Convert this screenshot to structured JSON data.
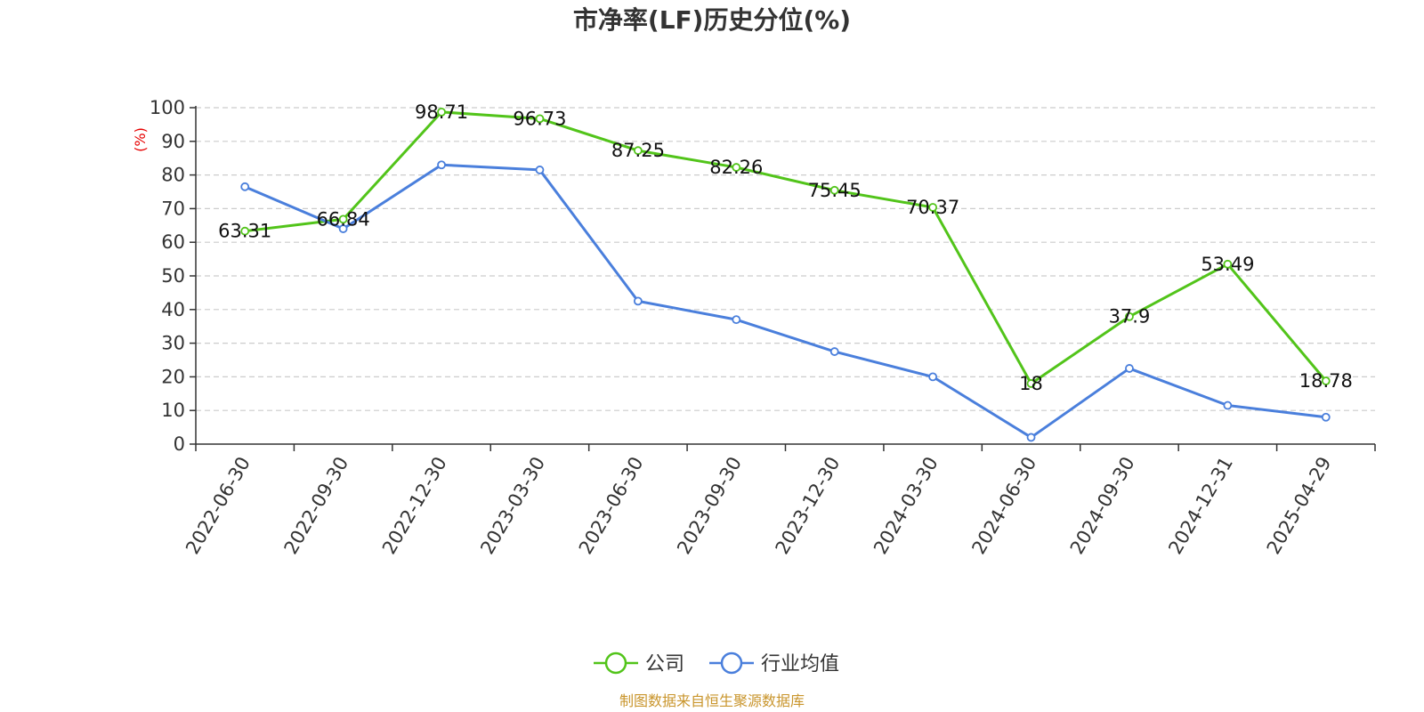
{
  "chart_data": {
    "type": "line",
    "title": "市净率(LF)历史分位(%)",
    "ylabel": "(%)",
    "xlabel": "",
    "ylim": [
      0,
      100
    ],
    "yticks": [
      0,
      10,
      20,
      30,
      40,
      50,
      60,
      70,
      80,
      90,
      100
    ],
    "grid": true,
    "legend_position": "bottom-center",
    "categories": [
      "2022-06-30",
      "2022-09-30",
      "2022-12-30",
      "2023-03-30",
      "2023-06-30",
      "2023-09-30",
      "2023-12-30",
      "2024-03-30",
      "2024-06-30",
      "2024-09-30",
      "2024-12-31",
      "2025-04-29"
    ],
    "series": [
      {
        "name": "公司",
        "color": "#52c41a",
        "values": [
          63.31,
          66.84,
          98.71,
          96.73,
          87.25,
          82.26,
          75.45,
          70.37,
          18,
          37.9,
          53.49,
          18.78
        ],
        "labels": [
          "63.31",
          "66.84",
          "98.71",
          "96.73",
          "87.25",
          "82.26",
          "75.45",
          "70.37",
          "18",
          "37.9",
          "53.49",
          "18.78"
        ]
      },
      {
        "name": "行业均值",
        "color": "#4a7fdc",
        "values": [
          76.5,
          64,
          83,
          81.5,
          42.5,
          37,
          27.5,
          20,
          2,
          22.5,
          11.5,
          8
        ]
      }
    ]
  },
  "source": "制图数据来自恒生聚源数据库"
}
